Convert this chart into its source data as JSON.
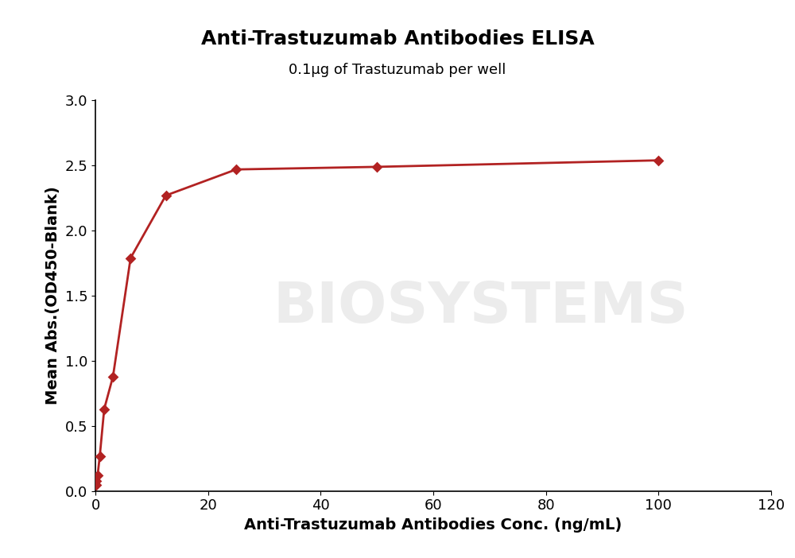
{
  "title": "Anti-Trastuzumab Antibodies ELISA",
  "subtitle": "0.1μg of Trastuzumab per well",
  "xlabel": "Anti-Trastuzumab Antibodies Conc. (ng/mL)",
  "ylabel": "Mean Abs.(OD450-Blank)",
  "x_data": [
    0.098,
    0.195,
    0.39,
    0.78,
    1.563,
    3.125,
    6.25,
    12.5,
    25,
    50,
    100
  ],
  "y_data": [
    0.05,
    0.08,
    0.12,
    0.27,
    0.63,
    0.88,
    1.79,
    2.27,
    2.47,
    2.49,
    2.54
  ],
  "xlim": [
    0,
    120
  ],
  "ylim": [
    0.0,
    3.0
  ],
  "xticks": [
    0,
    20,
    40,
    60,
    80,
    100,
    120
  ],
  "yticks": [
    0.0,
    0.5,
    1.0,
    1.5,
    2.0,
    2.5,
    3.0
  ],
  "line_color": "#b22222",
  "marker_color": "#b22222",
  "marker_style": "D",
  "marker_size": 7,
  "line_width": 2.0,
  "title_fontsize": 18,
  "subtitle_fontsize": 13,
  "axis_label_fontsize": 14,
  "tick_fontsize": 13,
  "watermark_text": "BIOSYSTEMS",
  "watermark_color": "#ececec",
  "watermark_fontsize": 52,
  "background_color": "#ffffff",
  "spine_color": "#000000"
}
